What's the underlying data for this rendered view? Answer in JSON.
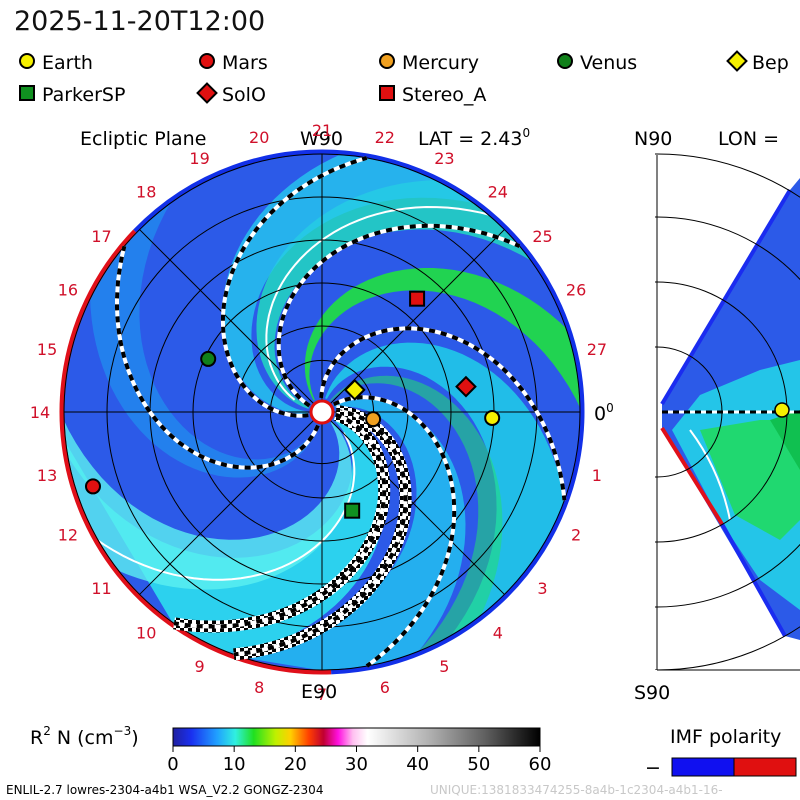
{
  "timestamp": "2025-11-20T12:00",
  "legend": [
    {
      "name": "Earth",
      "marker": "circle",
      "color": "#f5f000"
    },
    {
      "name": "Mars",
      "marker": "circle",
      "color": "#e01010"
    },
    {
      "name": "Mercury",
      "marker": "circle",
      "color": "#f0a020"
    },
    {
      "name": "Venus",
      "marker": "circle",
      "color": "#10801a"
    },
    {
      "name": "Bep",
      "marker": "diamond",
      "color": "#f5f000"
    },
    {
      "name": "ParkerSP",
      "marker": "square",
      "color": "#109020"
    },
    {
      "name": "SolO",
      "marker": "diamond",
      "color": "#e01010"
    },
    {
      "name": "Stereo_A",
      "marker": "square",
      "color": "#e01010"
    }
  ],
  "chart_data": [
    {
      "type": "heatmap",
      "title": "Ecliptic Plane",
      "lat_label": "LAT = 2.43",
      "lat_sup": "0",
      "axis_labels": {
        "top": "W90",
        "bottom": "E90",
        "right": "0",
        "right_sup": "0"
      },
      "carrington_ticks": [
        "0",
        "1",
        "2",
        "3",
        "4",
        "5",
        "6",
        "7",
        "8",
        "9",
        "10",
        "11",
        "12",
        "13",
        "14",
        "15",
        "16",
        "17",
        "18",
        "19",
        "20",
        "21",
        "22",
        "23",
        "24",
        "25",
        "26",
        "27"
      ],
      "planet_positions_au": [
        {
          "name": "Earth",
          "r": 0.99,
          "angle_deg": -2
        },
        {
          "name": "Mars",
          "r": 1.4,
          "angle_deg": 198
        },
        {
          "name": "Mercury",
          "r": 0.3,
          "angle_deg": -8
        },
        {
          "name": "Venus",
          "r": 0.73,
          "angle_deg": 155
        },
        {
          "name": "Bep",
          "r": 0.23,
          "angle_deg": 34
        },
        {
          "name": "ParkerSP",
          "r": 0.6,
          "angle_deg": -73
        },
        {
          "name": "SolO",
          "r": 0.85,
          "angle_deg": 10
        },
        {
          "name": "Stereo_A",
          "r": 0.86,
          "angle_deg": 50
        }
      ]
    },
    {
      "type": "heatmap",
      "title_left": "N90",
      "title_right": "LON = ",
      "bottom_label": "S90"
    }
  ],
  "colorbar": {
    "label": "R",
    "label_sup": "2",
    "label_rest": " N (cm",
    "label_sup2": "−3",
    "label_end": ")",
    "ticks": [
      "0",
      "10",
      "20",
      "30",
      "40",
      "50",
      "60"
    ]
  },
  "imf": {
    "label": "IMF polarity",
    "minus": "−",
    "colors": [
      "#1010f0",
      "#e01010"
    ]
  },
  "footer": {
    "model": "ENLIL-2.7 lowres-2304-a4b1 WSA_V2.2 GONGZ-2304",
    "id": "UNIQUE:1381833474255-8a4b-1c2304-a4b1-16-"
  }
}
